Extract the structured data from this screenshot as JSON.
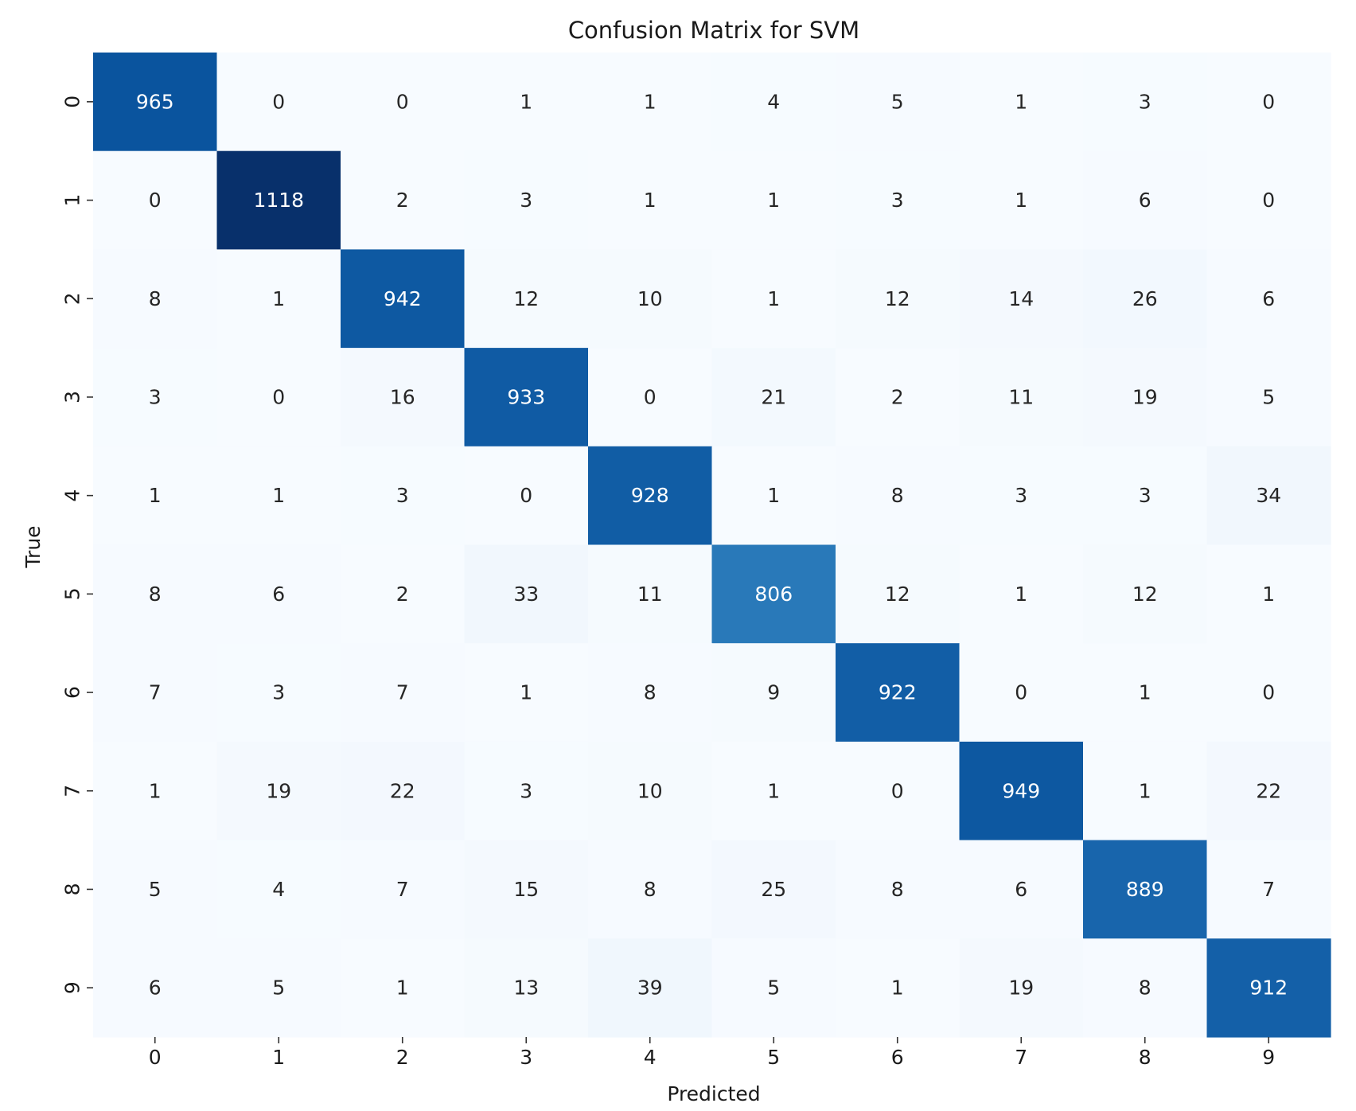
{
  "chart_data": {
    "type": "heatmap",
    "title": "Confusion Matrix for SVM",
    "xlabel": "Predicted",
    "ylabel": "True",
    "x_categories": [
      "0",
      "1",
      "2",
      "3",
      "4",
      "5",
      "6",
      "7",
      "8",
      "9"
    ],
    "y_categories": [
      "0",
      "1",
      "2",
      "3",
      "4",
      "5",
      "6",
      "7",
      "8",
      "9"
    ],
    "values": [
      [
        965,
        0,
        0,
        1,
        1,
        4,
        5,
        1,
        3,
        0
      ],
      [
        0,
        1118,
        2,
        3,
        1,
        1,
        3,
        1,
        6,
        0
      ],
      [
        8,
        1,
        942,
        12,
        10,
        1,
        12,
        14,
        26,
        6
      ],
      [
        3,
        0,
        16,
        933,
        0,
        21,
        2,
        11,
        19,
        5
      ],
      [
        1,
        1,
        3,
        0,
        928,
        1,
        8,
        3,
        3,
        34
      ],
      [
        8,
        6,
        2,
        33,
        11,
        806,
        12,
        1,
        12,
        1
      ],
      [
        7,
        3,
        7,
        1,
        8,
        9,
        922,
        0,
        1,
        0
      ],
      [
        1,
        19,
        22,
        3,
        10,
        1,
        0,
        949,
        1,
        22
      ],
      [
        5,
        4,
        7,
        15,
        8,
        25,
        8,
        6,
        889,
        7
      ],
      [
        6,
        5,
        1,
        13,
        39,
        5,
        1,
        19,
        8,
        912
      ]
    ],
    "colormap": "Blues",
    "colors": {
      "low": "#f7fbff",
      "high": "#08306b"
    },
    "vmin": 0,
    "vmax": 1118,
    "colorbar": false,
    "grid": false
  }
}
